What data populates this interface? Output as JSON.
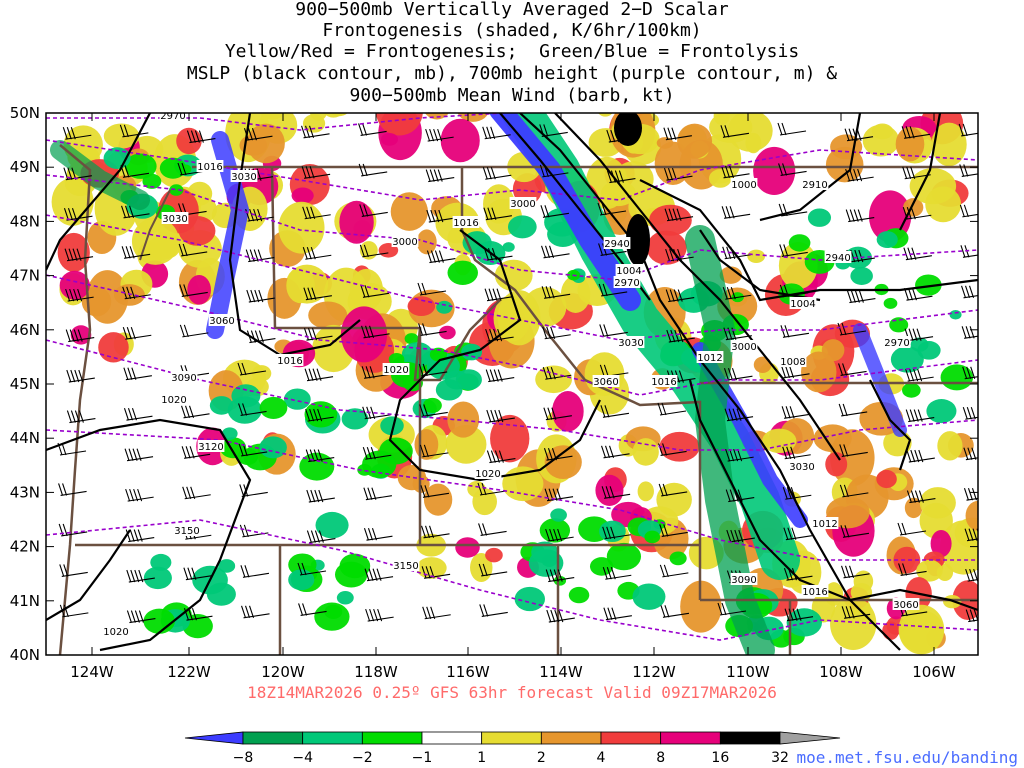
{
  "title": {
    "lines": [
      "900−500mb Vertically Averaged 2−D Scalar",
      "Frontogenesis (shaded, K/6hr/100km)",
      "Yellow/Red = Frontogenesis;  Green/Blue = Frontolysis",
      "MSLP (black contour, mb), 700mb height (purple contour, m) &",
      "900−500mb Mean Wind (barb, kt)"
    ]
  },
  "valid_line": "18Z14MAR2026 0.25º GFS 63hr forecast Valid 09Z17MAR2026",
  "credit": "moe.met.fsu.edu/banding",
  "map": {
    "lat_labels": [
      "50N",
      "49N",
      "48N",
      "47N",
      "46N",
      "45N",
      "44N",
      "43N",
      "42N",
      "41N",
      "40N"
    ],
    "lon_labels": [
      "124W",
      "122W",
      "120W",
      "118W",
      "116W",
      "114W",
      "112W",
      "110W",
      "108W",
      "106W"
    ],
    "mslp_labels": [
      "1016",
      "1016",
      "1016",
      "1020",
      "1020",
      "1020",
      "1020",
      "1004",
      "1004",
      "1000",
      "1012",
      "1008",
      "1012",
      "1016",
      "1016"
    ],
    "height_labels": [
      "2970",
      "3000",
      "3000",
      "3030",
      "3030",
      "3030",
      "3060",
      "3060",
      "3060",
      "3090",
      "3090",
      "3120",
      "3150",
      "3150",
      "2940",
      "2940",
      "2910",
      "2970",
      "2970",
      "3000",
      "3030",
      "3060"
    ]
  },
  "colorbar": {
    "labels": [
      "−8",
      "−4",
      "−2",
      "−1",
      "1",
      "2",
      "4",
      "8",
      "16",
      "32"
    ],
    "colors": [
      "#3c3cff",
      "#00a050",
      "#00c878",
      "#00dc00",
      "#ffffff",
      "#e6dc32",
      "#e6962d",
      "#f03c3c",
      "#e6007a",
      "#000000",
      "#a0a0a0"
    ]
  },
  "colors": {
    "mslp": "#000000",
    "height": "#9900cc",
    "border": "#6b5040",
    "grid": "#000000"
  }
}
